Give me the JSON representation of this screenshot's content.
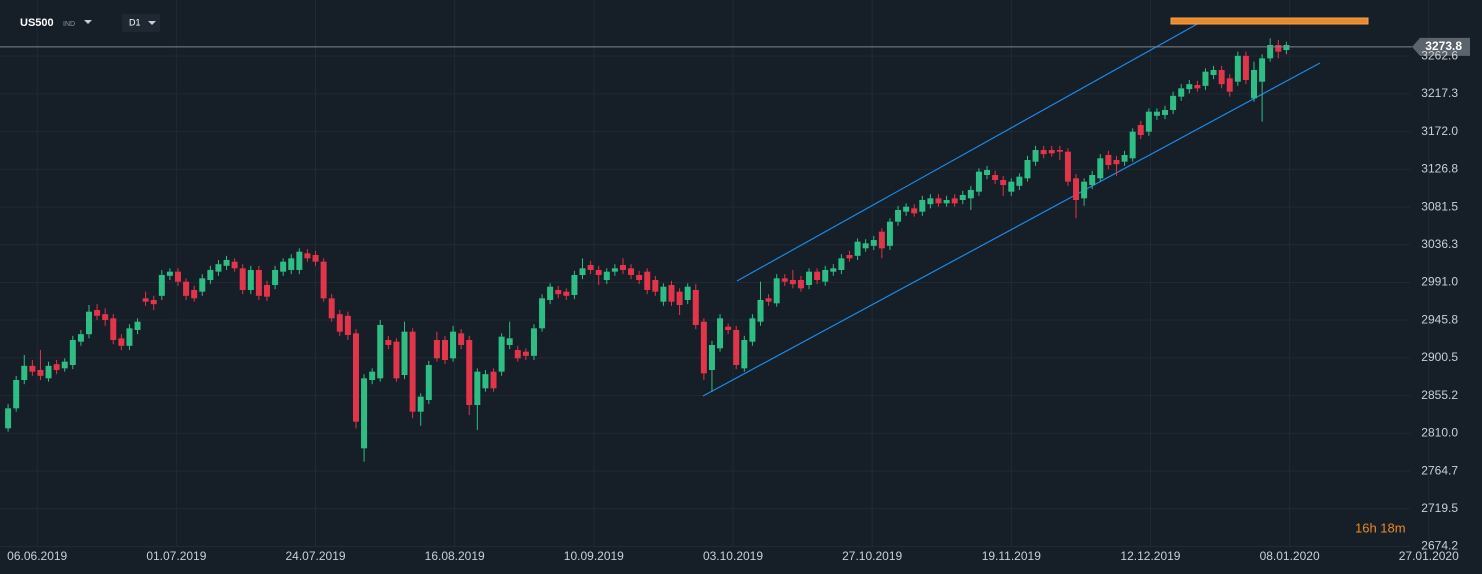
{
  "chart_data": {
    "type": "candlestick",
    "symbol": "US500",
    "symbol_type": "IND",
    "timeframe": "D1",
    "countdown": "16h 18m",
    "last_price": 3273.8,
    "up_color": "#2ebd85",
    "down_color": "#e0354a",
    "grid": true,
    "ylim": [
      2673.6,
      3330
    ],
    "yticks": [
      3262.6,
      3217.3,
      {
        "value": 3172.0,
        "label": "3172.0"
      },
      3126.8,
      3081.5,
      3036.3,
      {
        "value": 2991.0,
        "label": "2991.0"
      },
      2945.8,
      2900.5,
      2855.2,
      {
        "value": 2810.0,
        "label": "2810.0"
      },
      2764.7,
      2719.5,
      2674.2
    ],
    "xlim": [
      -1,
      176
    ],
    "xticks": [
      {
        "value": 3.6,
        "label": "06.06.2019"
      },
      {
        "value": 20.8,
        "label": "01.07.2019"
      },
      {
        "value": 38.0,
        "label": "24.07.2019"
      },
      {
        "value": 55.2,
        "label": "16.08.2019"
      },
      {
        "value": 72.4,
        "label": "10.09.2019"
      },
      {
        "value": 89.6,
        "label": "03.10.2019"
      },
      {
        "value": 106.8,
        "label": "27.10.2019"
      },
      {
        "value": 124.0,
        "label": "19.11.2019"
      },
      {
        "value": 141.2,
        "label": "12.12.2019"
      },
      {
        "value": 158.4,
        "label": "08.01.2020"
      },
      {
        "value": 175.6,
        "label": "27.01.2020"
      }
    ],
    "open": [
      2816,
      2840,
      2874,
      2891,
      2886,
      2876,
      2893,
      2888,
      2892,
      2920,
      2929,
      2958,
      2953,
      2948,
      2924,
      2915,
      2934,
      2972,
      2970,
      2975,
      2999,
      3004,
      2992,
      2982,
      2980,
      2994,
      3004,
      3011,
      3016,
      3008,
      2982,
      3006,
      2988,
      2988,
      3004,
      3006,
      3006,
      3026,
      3024,
      3016,
      2972,
      2953,
      2951,
      2930,
      2792,
      2874,
      2876,
      2922,
      2920,
      2880,
      2932,
      2836,
      2850,
      2922,
      2922,
      2900,
      2930,
      2922,
      2844,
      2864,
      2884,
      2884,
      2916,
      2910,
      2908,
      2903,
      2936,
      2970,
      2982,
      2980,
      2976,
      3000,
      3012,
      3006,
      2994,
      3004,
      3012,
      3008,
      3000,
      3004,
      2994,
      2968,
      2988,
      2980,
      2970,
      2982,
      2944,
      2886,
      2912,
      2938,
      2934,
      2888,
      2920,
      2944,
      2972,
      2966,
      2996,
      2994,
      2994,
      2988,
      3004,
      2992,
      3004,
      3006,
      3024,
      3023,
      3032,
      3035,
      3052,
      3035,
      3064,
      3076,
      3080,
      3076,
      3085,
      3092,
      3086,
      3092,
      3090,
      3092,
      3100,
      3120,
      3120,
      3114,
      3100,
      3107,
      3116,
      3136,
      3150,
      3150,
      3150,
      3148,
      3116,
      3092,
      3108,
      3116,
      3144,
      3138,
      3136,
      3140,
      3180,
      3172,
      3191,
      3192,
      3198,
      3214,
      3223,
      3228,
      3227,
      3240,
      3246,
      3236,
      3232,
      3263,
      3212,
      3232,
      3260,
      3276,
      3270
    ],
    "high": [
      2845,
      2879,
      2904,
      2898,
      2910,
      2896,
      2898,
      2900,
      2927,
      2934,
      2964,
      2965,
      2960,
      2953,
      2929,
      2941,
      2948,
      2980,
      2975,
      3006,
      3008,
      3008,
      2996,
      2987,
      3001,
      3011,
      3018,
      3023,
      3020,
      3013,
      3011,
      3011,
      2993,
      3011,
      3020,
      3025,
      3032,
      3031,
      3029,
      3020,
      2977,
      2958,
      2956,
      2935,
      2881,
      2888,
      2946,
      2927,
      2924,
      2944,
      2936,
      2858,
      2897,
      2932,
      2927,
      2939,
      2935,
      2927,
      2888,
      2886,
      2888,
      2930,
      2944,
      2915,
      2912,
      2941,
      2977,
      2990,
      2987,
      2984,
      3005,
      3020,
      3017,
      3011,
      3008,
      3013,
      3020,
      3013,
      3005,
      3008,
      2999,
      2990,
      2993,
      2984,
      2990,
      2989,
      2948,
      2921,
      2953,
      2942,
      2939,
      2927,
      2953,
      2992,
      2977,
      3001,
      3001,
      3006,
      2999,
      3008,
      3008,
      3011,
      3013,
      3025,
      3029,
      3044,
      3043,
      3047,
      3056,
      3068,
      3083,
      3086,
      3085,
      3095,
      3097,
      3097,
      3095,
      3097,
      3101,
      3107,
      3128,
      3131,
      3125,
      3119,
      3116,
      3122,
      3143,
      3155,
      3155,
      3155,
      3155,
      3152,
      3121,
      3116,
      3125,
      3145,
      3149,
      3143,
      3149,
      3176,
      3185,
      3200,
      3200,
      3203,
      3220,
      3229,
      3234,
      3233,
      3248,
      3251,
      3251,
      3241,
      3268,
      3268,
      3256,
      3265,
      3284,
      3282,
      3280
    ],
    "low": [
      2812,
      2836,
      2869,
      2879,
      2874,
      2872,
      2881,
      2884,
      2887,
      2915,
      2924,
      2946,
      2939,
      2917,
      2910,
      2910,
      2929,
      2963,
      2958,
      2970,
      2994,
      2987,
      2970,
      2968,
      2975,
      2989,
      2999,
      3006,
      3004,
      2977,
      2977,
      2970,
      2969,
      2983,
      2999,
      3001,
      3001,
      3016,
      3011,
      2968,
      2944,
      2927,
      2922,
      2816,
      2776,
      2869,
      2872,
      2911,
      2872,
      2875,
      2828,
      2819,
      2845,
      2896,
      2893,
      2896,
      2911,
      2832,
      2814,
      2860,
      2860,
      2879,
      2911,
      2896,
      2898,
      2898,
      2932,
      2965,
      2972,
      2970,
      2971,
      2995,
      3001,
      2988,
      2989,
      2999,
      3001,
      2995,
      2989,
      2977,
      2975,
      2963,
      2963,
      2952,
      2965,
      2935,
      2874,
      2860,
      2908,
      2929,
      2887,
      2884,
      2915,
      2939,
      2963,
      2962,
      2987,
      2984,
      2980,
      2983,
      2989,
      2987,
      2999,
      3001,
      3016,
      3018,
      3028,
      3030,
      3020,
      3030,
      3059,
      3071,
      3070,
      3071,
      3080,
      3082,
      3082,
      3082,
      3085,
      3078,
      3095,
      3115,
      3109,
      3095,
      3095,
      3102,
      3112,
      3131,
      3140,
      3142,
      3138,
      3107,
      3068,
      3083,
      3103,
      3112,
      3127,
      3119,
      3131,
      3136,
      3163,
      3167,
      3186,
      3187,
      3193,
      3209,
      3218,
      3220,
      3222,
      3235,
      3224,
      3214,
      3227,
      3229,
      3208,
      3184,
      3256,
      3260,
      3265
    ],
    "close": [
      2840,
      2874,
      2891,
      2884,
      2879,
      2891,
      2886,
      2896,
      2922,
      2929,
      2956,
      2951,
      2946,
      2922,
      2915,
      2936,
      2944,
      2968,
      2965,
      3000,
      3004,
      2992,
      2975,
      2972,
      2996,
      3006,
      3013,
      3018,
      3008,
      2982,
      3006,
      2975,
      2974,
      3006,
      3016,
      3020,
      3028,
      3020,
      3016,
      2972,
      2948,
      2932,
      2928,
      2824,
      2876,
      2884,
      2940,
      2916,
      2876,
      2932,
      2836,
      2854,
      2892,
      2900,
      2898,
      2932,
      2916,
      2844,
      2884,
      2881,
      2864,
      2926,
      2924,
      2900,
      2903,
      2936,
      2972,
      2986,
      2977,
      2975,
      3000,
      3008,
      3006,
      3000,
      3004,
      3008,
      3006,
      3000,
      2994,
      2982,
      2980,
      2986,
      2968,
      2964,
      2986,
      2940,
      2882,
      2916,
      2948,
      2934,
      2892,
      2922,
      2948,
      2970,
      2968,
      2996,
      2992,
      2989,
      2984,
      3004,
      2994,
      3006,
      3008,
      3020,
      3020,
      3040,
      3038,
      3042,
      3032,
      3064,
      3078,
      3082,
      3074,
      3090,
      3092,
      3086,
      3090,
      3086,
      3096,
      3102,
      3124,
      3126,
      3114,
      3108,
      3112,
      3118,
      3138,
      3150,
      3145,
      3146,
      3148,
      3112,
      3090,
      3112,
      3120,
      3140,
      3132,
      3133,
      3144,
      3172,
      3168,
      3196,
      3196,
      3198,
      3215,
      3224,
      3229,
      3224,
      3244,
      3246,
      3229,
      3220,
      3263,
      3234,
      3246,
      3260,
      3276,
      3268,
      3276
    ]
  }
}
